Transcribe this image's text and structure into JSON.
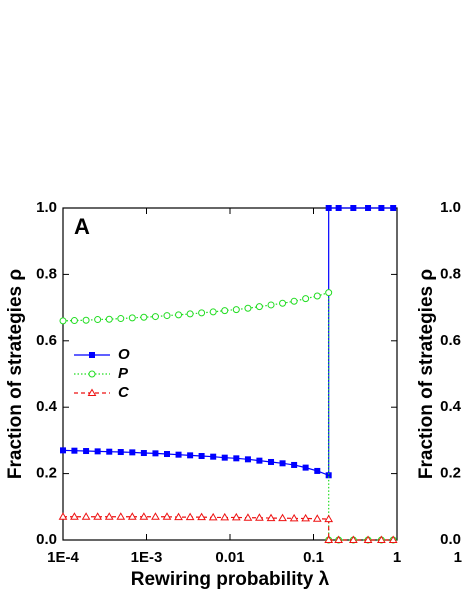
{
  "chart_data": [
    {
      "type": "line",
      "panel_label": "A",
      "xlabel": "Rewiring probability λ",
      "ylabel": "Fraction of strategies ρ",
      "xscale": "log",
      "xlim": [
        0.0001,
        1
      ],
      "ylim": [
        0,
        1
      ],
      "xticks": [
        {
          "value": 0.0001,
          "label": "1E-4"
        },
        {
          "value": 0.001,
          "label": "1E-3"
        },
        0.01,
        0.1,
        1
      ],
      "yticks": [
        {
          "value": 0,
          "label": "0.0"
        },
        0.2,
        0.4,
        0.6,
        0.8,
        {
          "value": 1,
          "label": "1.0"
        }
      ],
      "legend": "left",
      "x": [
        0.0001,
        0.000137,
        0.000189,
        0.00026,
        0.000358,
        0.000492,
        0.000676,
        0.00093,
        0.00128,
        0.00176,
        0.00242,
        0.00333,
        0.00457,
        0.00629,
        0.00865,
        0.0119,
        0.0164,
        0.0225,
        0.031,
        0.0426,
        0.0586,
        0.0805,
        0.111,
        0.152,
        0.152,
        0.2,
        0.3,
        0.45,
        0.65,
        0.9
      ],
      "series": [
        {
          "name": "O",
          "color": "#0000ff",
          "marker": "square",
          "dash": "solid",
          "values": [
            0.27,
            0.269,
            0.268,
            0.267,
            0.266,
            0.265,
            0.264,
            0.262,
            0.261,
            0.259,
            0.257,
            0.255,
            0.253,
            0.251,
            0.248,
            0.246,
            0.243,
            0.239,
            0.235,
            0.231,
            0.226,
            0.218,
            0.208,
            0.195,
            1,
            1,
            1,
            1,
            1,
            1
          ]
        },
        {
          "name": "P",
          "color": "#22dd22",
          "marker": "circle",
          "dash": "dotted",
          "values": [
            0.66,
            0.661,
            0.662,
            0.664,
            0.665,
            0.667,
            0.669,
            0.671,
            0.673,
            0.676,
            0.678,
            0.681,
            0.684,
            0.687,
            0.691,
            0.694,
            0.698,
            0.703,
            0.708,
            0.713,
            0.719,
            0.727,
            0.735,
            0.745,
            0,
            0,
            0,
            0,
            0,
            0
          ]
        },
        {
          "name": "C",
          "color": "#ee1111",
          "marker": "triangle",
          "dash": "dashed",
          "values": [
            0.07,
            0.07,
            0.07,
            0.07,
            0.07,
            0.07,
            0.07,
            0.07,
            0.07,
            0.07,
            0.069,
            0.069,
            0.069,
            0.068,
            0.068,
            0.068,
            0.067,
            0.067,
            0.066,
            0.066,
            0.065,
            0.065,
            0.064,
            0.063,
            0,
            0,
            0,
            0,
            0,
            0
          ]
        }
      ]
    },
    {
      "type": "line",
      "ylabel": "Fraction of strategies ρ",
      "ylim": [
        0,
        1
      ],
      "yticks": [
        {
          "value": 0,
          "label": "0.0"
        },
        0.2,
        0.4,
        0.6,
        0.8,
        {
          "value": 1,
          "label": "1.0"
        }
      ],
      "xticks": [
        1
      ]
    }
  ]
}
